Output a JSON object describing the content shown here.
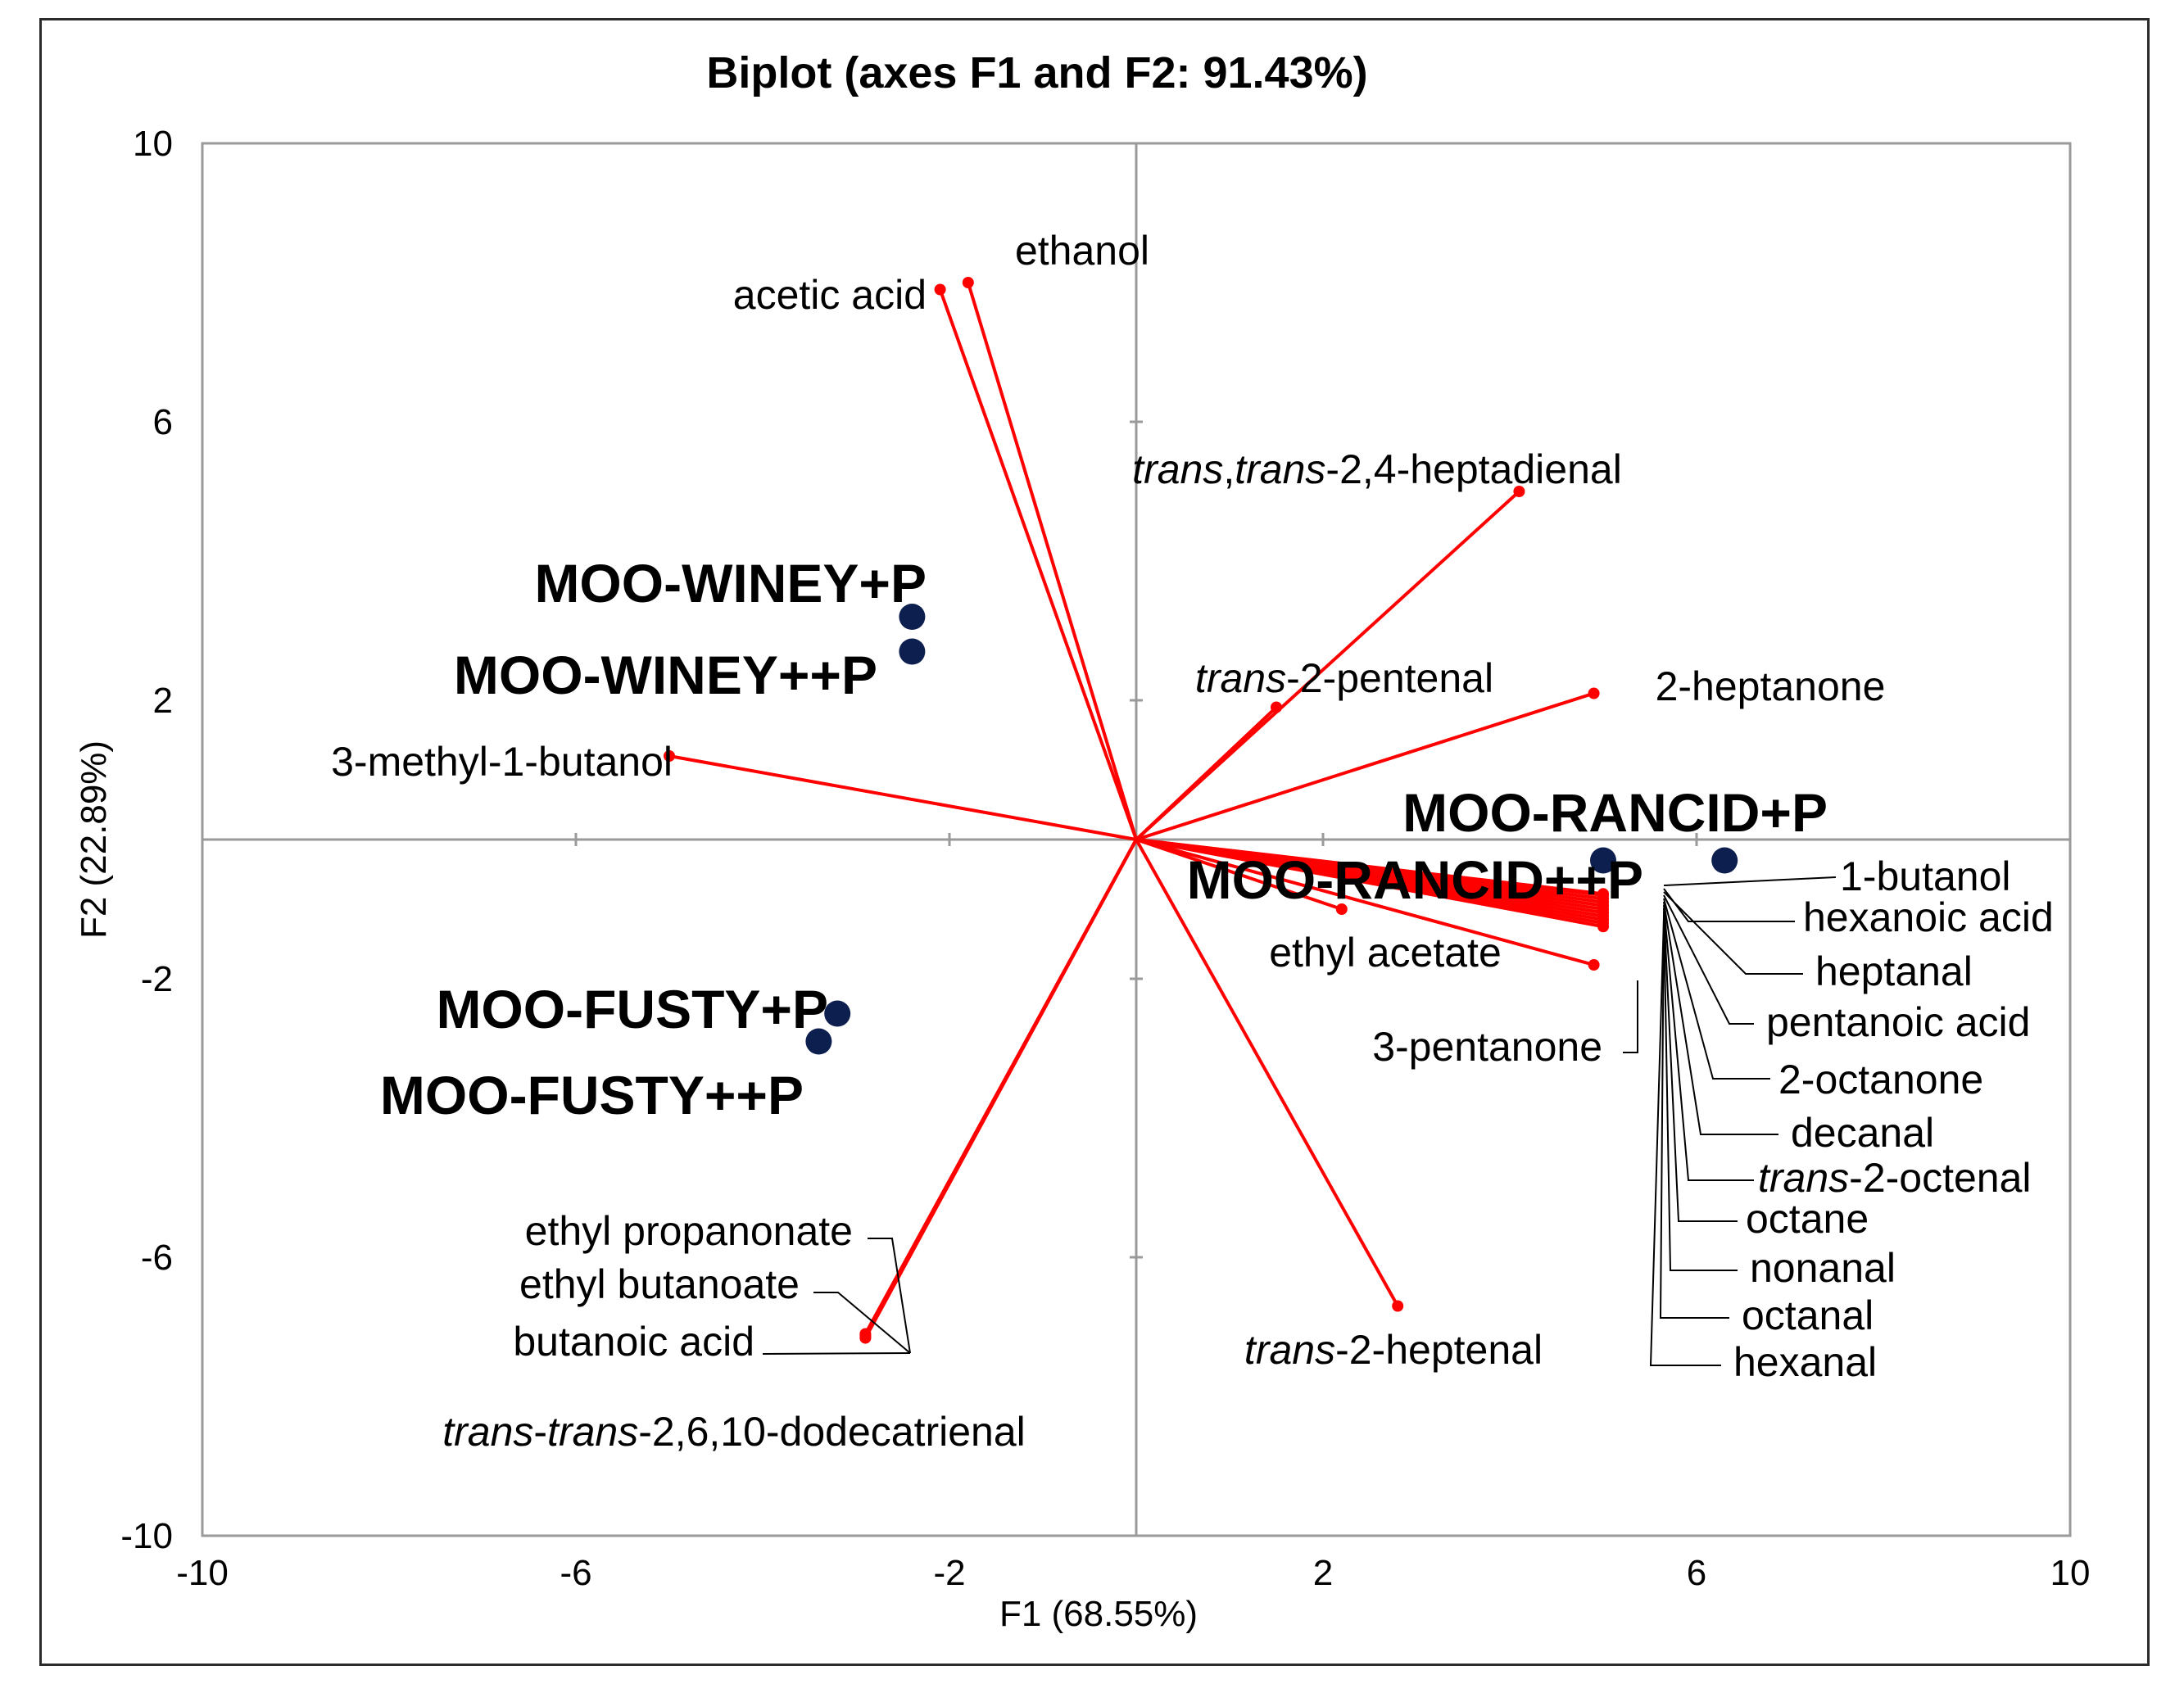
{
  "chart_data": {
    "type": "scatter",
    "subtype": "biplot",
    "title": "Biplot (axes F1 and F2: 91.43%)",
    "xlabel": "F1 (68.55%)",
    "ylabel": "F2 (22.89%)",
    "xlim": [
      -10,
      10
    ],
    "ylim": [
      -10,
      10
    ],
    "x_tick_labels": [
      "-10",
      "-6",
      "-2",
      "2",
      "6",
      "10"
    ],
    "y_tick_labels": [
      "10",
      "6",
      "2",
      "-2",
      "-6",
      "-10"
    ],
    "grid": false,
    "observations": [
      {
        "name": "MOO-WINEY+P",
        "x": -2.4,
        "y": 3.2
      },
      {
        "name": "MOO-WINEY++P",
        "x": -2.4,
        "y": 2.7
      },
      {
        "name": "MOO-RANCID+P",
        "x": 6.3,
        "y": -0.3
      },
      {
        "name": "MOO-RANCID++P",
        "x": 5.0,
        "y": -0.3
      },
      {
        "name": "MOO-FUSTY+P",
        "x": -3.2,
        "y": -2.5
      },
      {
        "name": "MOO-FUSTY++P",
        "x": -3.4,
        "y": -2.9
      }
    ],
    "variables": [
      {
        "name": "ethanol",
        "x": -1.8,
        "y": 8.0
      },
      {
        "name": "acetic acid",
        "x": -2.1,
        "y": 7.9
      },
      {
        "name": "trans,trans-2,4-heptadienal",
        "x": 4.1,
        "y": 5.0
      },
      {
        "name": "trans-2-pentenal",
        "x": 1.5,
        "y": 1.9
      },
      {
        "name": "2-heptanone",
        "x": 4.9,
        "y": 2.1
      },
      {
        "name": "3-methyl-1-butanol",
        "x": -5.0,
        "y": 1.2
      },
      {
        "name": "1-butanol",
        "x": 5.0,
        "y": -0.78
      },
      {
        "name": "hexanoic acid",
        "x": 5.0,
        "y": -0.8
      },
      {
        "name": "heptanal",
        "x": 5.0,
        "y": -0.85
      },
      {
        "name": "pentanoic acid",
        "x": 5.0,
        "y": -0.9
      },
      {
        "name": "2-octanone",
        "x": 5.0,
        "y": -0.95
      },
      {
        "name": "decanal",
        "x": 5.0,
        "y": -1.0
      },
      {
        "name": "trans-2-octenal",
        "x": 5.0,
        "y": -1.05
      },
      {
        "name": "octane",
        "x": 5.0,
        "y": -1.1
      },
      {
        "name": "nonanal",
        "x": 5.0,
        "y": -1.15
      },
      {
        "name": "octanal",
        "x": 5.0,
        "y": -1.2
      },
      {
        "name": "hexanal",
        "x": 5.0,
        "y": -1.25
      },
      {
        "name": "ethyl acetate",
        "x": 2.2,
        "y": -1.0
      },
      {
        "name": "3-pentanone",
        "x": 4.9,
        "y": -1.8
      },
      {
        "name": "trans-2-heptenal",
        "x": 2.8,
        "y": -6.7
      },
      {
        "name": "ethyl propanonate",
        "x": -2.9,
        "y": -7.1
      },
      {
        "name": "ethyl butanoate",
        "x": -2.9,
        "y": -7.12
      },
      {
        "name": "butanoic acid",
        "x": -2.9,
        "y": -7.14
      },
      {
        "name": "trans-trans-2,6,10-dodecatrienal",
        "x": -2.9,
        "y": -7.16
      }
    ]
  },
  "colors": {
    "vector": "#ff0000",
    "observation": "#0d1f4f",
    "axis": "#9a9a9a",
    "frame": "#2b2b2b"
  }
}
